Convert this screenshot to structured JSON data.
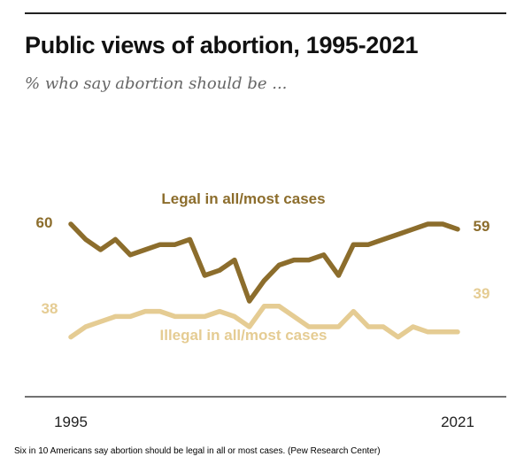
{
  "title": "Public views of abortion, 1995-2021",
  "subtitle": "% who say abortion should be ...",
  "caption": "Six in 10 Americans say abortion should be legal in all or most cases. (Pew Research Center)",
  "chart_data": {
    "type": "line",
    "x": [
      1995,
      1996,
      1997,
      1998,
      1999,
      2000,
      2001,
      2002,
      2003,
      2004,
      2005,
      2006,
      2007,
      2008,
      2009,
      2010,
      2011,
      2012,
      2013,
      2014,
      2015,
      2016,
      2017,
      2018,
      2019,
      2020,
      2021
    ],
    "x_tick_labels": [
      "1995",
      "2021"
    ],
    "series": [
      {
        "name": "Legal in all/most cases",
        "color": "#8c6d2c",
        "values": [
          60,
          57,
          55,
          57,
          54,
          55,
          56,
          56,
          57,
          50,
          51,
          53,
          45,
          49,
          52,
          53,
          53,
          54,
          50,
          56,
          56,
          57,
          58,
          59,
          60,
          60,
          59
        ],
        "start_label": "60",
        "end_label": "59"
      },
      {
        "name": "Illegal in all/most cases",
        "color": "#e5cc93",
        "values": [
          38,
          40,
          41,
          42,
          42,
          43,
          43,
          42,
          42,
          42,
          43,
          42,
          40,
          44,
          44,
          42,
          40,
          40,
          40,
          43,
          40,
          40,
          38,
          40,
          39,
          39,
          39
        ],
        "start_label": "38",
        "end_label": "39"
      }
    ],
    "ylim": [
      30,
      70
    ],
    "grid": false,
    "legend": "inline labels"
  }
}
